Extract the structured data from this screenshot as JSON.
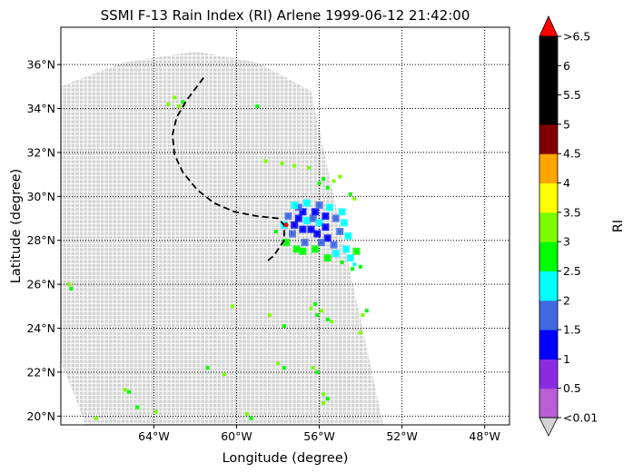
{
  "title": "SSMI F-13 Rain Index (RI) Arlene 1999-06-12 21:42:00",
  "xlabel": "Longitude (degree)",
  "ylabel": "Latitude (degree)",
  "map": {
    "lon_range": [
      -68.5,
      -46.8
    ],
    "lat_range": [
      19.6,
      37.7
    ],
    "lon_ticks": [
      {
        "value": -64,
        "label": "64°W"
      },
      {
        "value": -60,
        "label": "60°W"
      },
      {
        "value": -56,
        "label": "56°W"
      },
      {
        "value": -52,
        "label": "52°W"
      },
      {
        "value": -48,
        "label": "48°W"
      }
    ],
    "lat_ticks": [
      {
        "value": 20,
        "label": "20°N"
      },
      {
        "value": 22,
        "label": "22°N"
      },
      {
        "value": 24,
        "label": "24°N"
      },
      {
        "value": 26,
        "label": "26°N"
      },
      {
        "value": 28,
        "label": "28°N"
      },
      {
        "value": 30,
        "label": "30°N"
      },
      {
        "value": 32,
        "label": "32°N"
      },
      {
        "value": 34,
        "label": "34°N"
      },
      {
        "value": 36,
        "label": "36°N"
      }
    ],
    "grid": "dotted",
    "swath_color": "#d3d3d3",
    "swath_outline": [
      [
        -68.5,
        35.0
      ],
      [
        -65.5,
        36.1
      ],
      [
        -62.0,
        36.6
      ],
      [
        -59.0,
        36.1
      ],
      [
        -56.4,
        34.8
      ],
      [
        -52.9,
        19.6
      ],
      [
        -67.3,
        19.6
      ],
      [
        -68.5,
        22.5
      ]
    ],
    "storm_track": [
      [
        -61.6,
        35.4
      ],
      [
        -62.4,
        34.4
      ],
      [
        -62.9,
        33.6
      ],
      [
        -63.1,
        32.8
      ],
      [
        -63.0,
        31.9
      ],
      [
        -62.6,
        31.1
      ],
      [
        -61.9,
        30.3
      ],
      [
        -61.1,
        29.7
      ],
      [
        -60.1,
        29.3
      ],
      [
        -59.0,
        29.1
      ],
      [
        -58.0,
        29.0
      ],
      [
        -57.7,
        28.7
      ],
      [
        -57.7,
        28.0
      ],
      [
        -58.2,
        27.3
      ],
      [
        -58.6,
        27.0
      ]
    ],
    "storm_center": [
      -57.6,
      28.7
    ],
    "rain_cells": [
      [
        -56.6,
        28.9,
        4
      ],
      [
        -56.3,
        29.0,
        3
      ],
      [
        -56.0,
        28.8,
        4
      ],
      [
        -56.4,
        28.5,
        2
      ],
      [
        -56.8,
        28.5,
        2
      ],
      [
        -56.1,
        28.3,
        2
      ],
      [
        -55.7,
        28.6,
        2
      ],
      [
        -57.0,
        29.0,
        2
      ],
      [
        -56.8,
        29.3,
        2
      ],
      [
        -56.2,
        29.3,
        2
      ],
      [
        -55.7,
        29.1,
        2
      ],
      [
        -57.2,
        28.7,
        2
      ],
      [
        -55.6,
        28.1,
        2
      ],
      [
        -57.5,
        29.1,
        3
      ],
      [
        -57.0,
        29.5,
        3
      ],
      [
        -56.0,
        29.6,
        3
      ],
      [
        -55.2,
        29.0,
        3
      ],
      [
        -55.0,
        28.4,
        3
      ],
      [
        -55.3,
        27.8,
        3
      ],
      [
        -56.7,
        27.9,
        3
      ],
      [
        -57.3,
        28.3,
        3
      ],
      [
        -55.9,
        27.9,
        3
      ],
      [
        -54.8,
        28.8,
        4
      ],
      [
        -54.6,
        28.2,
        4
      ],
      [
        -54.7,
        27.6,
        4
      ],
      [
        -55.2,
        27.4,
        4
      ],
      [
        -54.5,
        27.2,
        4
      ],
      [
        -54.9,
        29.3,
        4
      ],
      [
        -55.5,
        29.5,
        4
      ],
      [
        -57.7,
        28.7,
        4
      ],
      [
        -57.2,
        29.6,
        4
      ],
      [
        -56.6,
        29.7,
        4
      ],
      [
        -54.3,
        26.9,
        4
      ],
      [
        -54.9,
        27.0,
        5
      ],
      [
        -54.2,
        27.5,
        5
      ],
      [
        -57.1,
        27.6,
        5
      ],
      [
        -57.6,
        27.9,
        5
      ],
      [
        -58.1,
        28.4,
        5
      ],
      [
        -56.8,
        27.5,
        5
      ],
      [
        -56.2,
        27.6,
        5
      ],
      [
        -55.6,
        27.2,
        5
      ],
      [
        -54.4,
        26.7,
        5
      ],
      [
        -54.0,
        26.8,
        5
      ],
      [
        -56.0,
        30.6,
        5
      ],
      [
        -55.8,
        30.8,
        5
      ],
      [
        -55.3,
        30.7,
        6
      ],
      [
        -55.0,
        30.9,
        6
      ],
      [
        -56.5,
        31.3,
        6
      ],
      [
        -55.6,
        30.4,
        5
      ],
      [
        -58.6,
        31.6,
        6
      ],
      [
        -57.8,
        31.5,
        6
      ],
      [
        -57.2,
        31.4,
        6
      ],
      [
        -54.5,
        30.1,
        5
      ],
      [
        -54.3,
        29.9,
        6
      ],
      [
        -56.2,
        25.1,
        5
      ],
      [
        -55.9,
        24.8,
        6
      ],
      [
        -56.1,
        24.6,
        5
      ],
      [
        -55.6,
        24.4,
        5
      ],
      [
        -55.4,
        24.3,
        6
      ],
      [
        -56.4,
        24.9,
        6
      ],
      [
        -53.9,
        24.6,
        6
      ],
      [
        -53.7,
        24.8,
        5
      ],
      [
        -68.1,
        26.0,
        6
      ],
      [
        -68.0,
        25.8,
        5
      ],
      [
        -63.0,
        34.5,
        6
      ],
      [
        -62.6,
        34.3,
        5
      ],
      [
        -62.8,
        34.1,
        6
      ],
      [
        -63.3,
        34.2,
        6
      ],
      [
        -59.0,
        34.1,
        5
      ],
      [
        -60.2,
        25.0,
        6
      ],
      [
        -58.4,
        24.6,
        6
      ],
      [
        -57.7,
        24.1,
        5
      ],
      [
        -54.0,
        23.8,
        6
      ],
      [
        -58.0,
        22.4,
        6
      ],
      [
        -57.7,
        22.2,
        5
      ],
      [
        -56.3,
        22.2,
        6
      ],
      [
        -56.1,
        22.0,
        5
      ],
      [
        -60.6,
        21.9,
        6
      ],
      [
        -61.4,
        22.2,
        5
      ],
      [
        -65.4,
        21.2,
        6
      ],
      [
        -65.2,
        21.1,
        5
      ],
      [
        -55.8,
        21.0,
        6
      ],
      [
        -55.6,
        20.8,
        5
      ],
      [
        -55.8,
        20.6,
        6
      ],
      [
        -64.8,
        20.4,
        5
      ],
      [
        -63.9,
        20.2,
        6
      ],
      [
        -59.5,
        20.1,
        6
      ],
      [
        -59.3,
        19.9,
        5
      ],
      [
        -66.8,
        19.9,
        6
      ]
    ]
  },
  "colorbar": {
    "label": "RI",
    "extend_top_color": "#ff0000",
    "extend_bottom_color": "#d3d3d3",
    "colors": [
      "#b85fd6",
      "#8a2be2",
      "#0000ff",
      "#4169e1",
      "#00ffff",
      "#00ff00",
      "#7cfc00",
      "#ffff00",
      "#ffa500",
      "#800000",
      "#000000",
      "#000000",
      "#000000"
    ],
    "tick_labels": [
      "<0.01",
      "0.5",
      "1",
      "1.5",
      "2",
      "2.5",
      "3",
      "3.5",
      "4",
      "4.5",
      "5",
      "5.5",
      "6",
      ">6.5"
    ]
  }
}
